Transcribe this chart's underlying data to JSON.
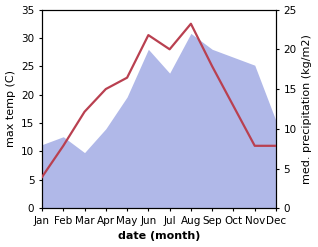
{
  "months": [
    "Jan",
    "Feb",
    "Mar",
    "Apr",
    "May",
    "Jun",
    "Jul",
    "Aug",
    "Sep",
    "Oct",
    "Nov",
    "Dec"
  ],
  "temperature": [
    5.5,
    11.0,
    17.0,
    21.0,
    23.0,
    30.5,
    28.0,
    32.5,
    25.0,
    18.0,
    11.0,
    11.0
  ],
  "precipitation": [
    8,
    9,
    7,
    10,
    14,
    20,
    17,
    22,
    20,
    19,
    18,
    11
  ],
  "temp_color": "#b94050",
  "precip_color": "#b0b8e8",
  "temp_ylim": [
    0,
    35
  ],
  "precip_ylim": [
    0,
    25
  ],
  "temp_yticks": [
    0,
    5,
    10,
    15,
    20,
    25,
    30,
    35
  ],
  "precip_yticks": [
    0,
    5,
    10,
    15,
    20,
    25
  ],
  "xlabel": "date (month)",
  "ylabel_left": "max temp (C)",
  "ylabel_right": "med. precipitation (kg/m2)",
  "label_fontsize": 8,
  "tick_fontsize": 7.5
}
